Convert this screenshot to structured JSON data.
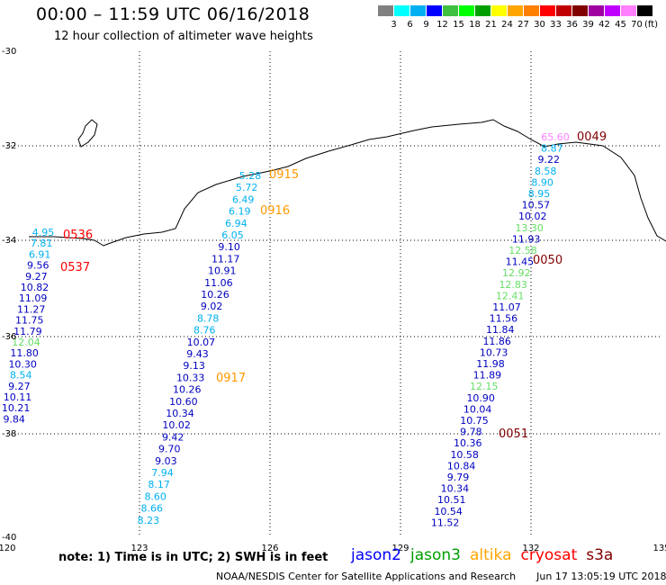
{
  "header": {
    "title": "00:00 – 11:59 UTC 06/16/2018",
    "subtitle": "12 hour collection of altimeter wave heights"
  },
  "color_scale": {
    "colors": [
      "#808080",
      "#00ffff",
      "#00b0f0",
      "#0000ff",
      "#40c040",
      "#00ff00",
      "#00a000",
      "#ffff00",
      "#ffa500",
      "#ff8000",
      "#ff0000",
      "#c00000",
      "#800000",
      "#a000a0",
      "#c000ff",
      "#ff80ff",
      "#000000"
    ],
    "labels": [
      "3",
      "6",
      "9",
      "12",
      "15",
      "18",
      "21",
      "24",
      "27",
      "30",
      "33",
      "36",
      "39",
      "42",
      "45",
      "70"
    ],
    "unit": "(ft)"
  },
  "axes": {
    "lat_labels": [
      "-30",
      "-32",
      "-34",
      "-36",
      "-38",
      "-40"
    ],
    "lon_labels": [
      "120",
      "123",
      "126",
      "129",
      "132",
      "135"
    ]
  },
  "tracks": [
    {
      "satellite": "cryosat",
      "color": "#ff0000",
      "label_color": "#ff0000",
      "times": [
        {
          "text": "0536"
        },
        {
          "text": "0537"
        }
      ],
      "values": [
        {
          "v": "4.95",
          "c": "#00b0f0"
        },
        {
          "v": "7.81",
          "c": "#00b0f0"
        },
        {
          "v": "6.91",
          "c": "#00b0f0"
        },
        {
          "v": "9.56",
          "c": "#0000c0"
        },
        {
          "v": "9.27",
          "c": "#0000c0"
        },
        {
          "v": "10.82",
          "c": "#0000c0"
        },
        {
          "v": "11.09",
          "c": "#0000c0"
        },
        {
          "v": "11.27",
          "c": "#0000c0"
        },
        {
          "v": "11.75",
          "c": "#0000c0"
        },
        {
          "v": "11.79",
          "c": "#0000c0"
        },
        {
          "v": "12.04",
          "c": "#66dd66"
        },
        {
          "v": "11.80",
          "c": "#0000c0"
        },
        {
          "v": "10.30",
          "c": "#0000c0"
        },
        {
          "v": "8.54",
          "c": "#00b0f0"
        },
        {
          "v": "9.27",
          "c": "#0000c0"
        },
        {
          "v": "10.11",
          "c": "#0000c0"
        },
        {
          "v": "10.21",
          "c": "#0000c0"
        },
        {
          "v": "9.84",
          "c": "#0000c0"
        }
      ]
    },
    {
      "satellite": "altika",
      "color": "#ffa500",
      "label_color": "#ff9900",
      "times": [
        {
          "text": "0915"
        },
        {
          "text": "0916"
        },
        {
          "text": "0917"
        }
      ],
      "values": [
        {
          "v": "5.28",
          "c": "#00b0f0"
        },
        {
          "v": "5.72",
          "c": "#00b0f0"
        },
        {
          "v": "6.49",
          "c": "#00b0f0"
        },
        {
          "v": "6.19",
          "c": "#00b0f0"
        },
        {
          "v": "6.94",
          "c": "#00b0f0"
        },
        {
          "v": "6.05",
          "c": "#00b0f0"
        },
        {
          "v": "9.10",
          "c": "#0000c0"
        },
        {
          "v": "11.17",
          "c": "#0000c0"
        },
        {
          "v": "10.91",
          "c": "#0000c0"
        },
        {
          "v": "11.06",
          "c": "#0000c0"
        },
        {
          "v": "10.26",
          "c": "#0000c0"
        },
        {
          "v": "9.02",
          "c": "#0000c0"
        },
        {
          "v": "8.78",
          "c": "#00b0f0"
        },
        {
          "v": "8.76",
          "c": "#00b0f0"
        },
        {
          "v": "10.07",
          "c": "#0000c0"
        },
        {
          "v": "9.43",
          "c": "#0000c0"
        },
        {
          "v": "9.13",
          "c": "#0000c0"
        },
        {
          "v": "10.33",
          "c": "#0000c0"
        },
        {
          "v": "10.26",
          "c": "#0000c0"
        },
        {
          "v": "10.60",
          "c": "#0000c0"
        },
        {
          "v": "10.34",
          "c": "#0000c0"
        },
        {
          "v": "10.02",
          "c": "#0000c0"
        },
        {
          "v": "9.42",
          "c": "#0000c0"
        },
        {
          "v": "9.70",
          "c": "#0000c0"
        },
        {
          "v": "9.03",
          "c": "#0000c0"
        },
        {
          "v": "7.94",
          "c": "#00b0f0"
        },
        {
          "v": "8.17",
          "c": "#00b0f0"
        },
        {
          "v": "8.60",
          "c": "#00b0f0"
        },
        {
          "v": "8.66",
          "c": "#00b0f0"
        },
        {
          "v": "8.23",
          "c": "#00b0f0"
        }
      ]
    },
    {
      "satellite": "s3a",
      "color": "#800000",
      "label_color": "#800000",
      "times": [
        {
          "text": "0049"
        },
        {
          "text": "0050"
        },
        {
          "text": "0051"
        }
      ],
      "values": [
        {
          "v": "65.60",
          "c": "#ff80ff"
        },
        {
          "v": "8.87",
          "c": "#00b0f0"
        },
        {
          "v": "9.22",
          "c": "#0000c0"
        },
        {
          "v": "8.58",
          "c": "#00b0f0"
        },
        {
          "v": "8.90",
          "c": "#00b0f0"
        },
        {
          "v": "8.95",
          "c": "#00b0f0"
        },
        {
          "v": "10.57",
          "c": "#0000c0"
        },
        {
          "v": "10.02",
          "c": "#0000c0"
        },
        {
          "v": "13.30",
          "c": "#66dd66"
        },
        {
          "v": "11.93",
          "c": "#0000c0"
        },
        {
          "v": "12.58",
          "c": "#66dd66"
        },
        {
          "v": "11.45",
          "c": "#0000c0"
        },
        {
          "v": "12.92",
          "c": "#66dd66"
        },
        {
          "v": "12.83",
          "c": "#66dd66"
        },
        {
          "v": "12.41",
          "c": "#66dd66"
        },
        {
          "v": "11.07",
          "c": "#0000c0"
        },
        {
          "v": "11.56",
          "c": "#0000c0"
        },
        {
          "v": "11.84",
          "c": "#0000c0"
        },
        {
          "v": "11.86",
          "c": "#0000c0"
        },
        {
          "v": "10.73",
          "c": "#0000c0"
        },
        {
          "v": "11.98",
          "c": "#0000c0"
        },
        {
          "v": "11.89",
          "c": "#0000c0"
        },
        {
          "v": "12.15",
          "c": "#66dd66"
        },
        {
          "v": "10.90",
          "c": "#0000c0"
        },
        {
          "v": "10.04",
          "c": "#0000c0"
        },
        {
          "v": "10.75",
          "c": "#0000c0"
        },
        {
          "v": "9.78",
          "c": "#0000c0"
        },
        {
          "v": "10.36",
          "c": "#0000c0"
        },
        {
          "v": "10.58",
          "c": "#0000c0"
        },
        {
          "v": "10.84",
          "c": "#0000c0"
        },
        {
          "v": "9.79",
          "c": "#0000c0"
        },
        {
          "v": "10.34",
          "c": "#0000c0"
        },
        {
          "v": "10.51",
          "c": "#0000c0"
        },
        {
          "v": "10.54",
          "c": "#0000c0"
        },
        {
          "v": "11.52",
          "c": "#0000c0"
        }
      ]
    }
  ],
  "note": "note: 1) Time is in UTC; 2) SWH is in feet",
  "legend": [
    {
      "name": "jason2",
      "color": "#0000ff"
    },
    {
      "name": "jason3",
      "color": "#00a000"
    },
    {
      "name": "altika",
      "color": "#ffa500"
    },
    {
      "name": "cryosat",
      "color": "#ff0000"
    },
    {
      "name": "s3a",
      "color": "#800000"
    }
  ],
  "footer": {
    "credit": "NOAA/NESDIS Center for Satellite Applications and Research",
    "timestamp": "Jun 17 13:05:19 UTC 2018"
  }
}
